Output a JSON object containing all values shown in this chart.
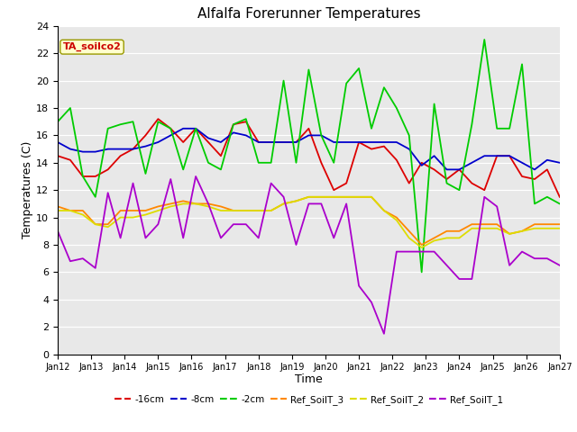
{
  "title": "Alfalfa Forerunner Temperatures",
  "xlabel": "Time",
  "ylabel": "Temperatures (C)",
  "ylim": [
    0,
    24
  ],
  "annotation_text": "TA_soilco2",
  "annotation_bg": "#ffffcc",
  "annotation_text_color": "#cc0000",
  "plot_bg": "#e8e8e8",
  "x_labels": [
    "Jan 12",
    "Jan 13",
    "Jan 14",
    "Jan 15",
    "Jan 16",
    "Jan 17",
    "Jan 18",
    "Jan 19",
    "Jan 20",
    "Jan 21",
    "Jan 22",
    "Jan 23",
    "Jan 24",
    "Jan 25",
    "Jan 26",
    "Jan 27"
  ],
  "series": {
    "-16cm": {
      "color": "#dd0000",
      "linewidth": 1.3,
      "values": [
        14.5,
        14.2,
        13.0,
        13.0,
        13.5,
        14.5,
        15.0,
        16.0,
        17.2,
        16.5,
        15.5,
        16.5,
        15.5,
        14.5,
        16.8,
        17.0,
        15.5,
        15.5,
        15.5,
        15.5,
        16.5,
        14.0,
        12.0,
        12.5,
        15.5,
        15.0,
        15.2,
        14.2,
        12.5,
        14.0,
        13.5,
        12.8,
        13.5,
        12.5,
        12.0,
        14.5,
        14.5,
        13.0,
        12.8,
        13.5,
        11.5
      ]
    },
    "-8cm": {
      "color": "#0000cc",
      "linewidth": 1.3,
      "values": [
        15.5,
        15.0,
        14.8,
        14.8,
        15.0,
        15.0,
        15.0,
        15.2,
        15.5,
        16.0,
        16.5,
        16.5,
        15.8,
        15.5,
        16.2,
        16.0,
        15.5,
        15.5,
        15.5,
        15.5,
        16.0,
        16.0,
        15.5,
        15.5,
        15.5,
        15.5,
        15.5,
        15.5,
        15.0,
        13.8,
        14.5,
        13.5,
        13.5,
        14.0,
        14.5,
        14.5,
        14.5,
        14.0,
        13.5,
        14.2,
        14.0
      ]
    },
    "-2cm": {
      "color": "#00cc00",
      "linewidth": 1.3,
      "values": [
        17.0,
        18.0,
        13.0,
        11.5,
        16.5,
        16.8,
        17.0,
        13.2,
        17.0,
        16.5,
        13.5,
        16.5,
        14.0,
        13.5,
        16.8,
        17.2,
        14.0,
        14.0,
        20.0,
        14.0,
        20.8,
        16.0,
        14.0,
        19.8,
        20.9,
        16.5,
        19.5,
        18.0,
        16.0,
        6.0,
        18.3,
        12.5,
        12.0,
        16.8,
        23.0,
        16.5,
        16.5,
        21.2,
        11.0,
        11.5,
        11.0
      ]
    },
    "Ref_SoilT_3": {
      "color": "#ff8800",
      "linewidth": 1.3,
      "values": [
        10.8,
        10.5,
        10.5,
        9.5,
        9.5,
        10.5,
        10.5,
        10.5,
        10.8,
        11.0,
        11.2,
        11.0,
        11.0,
        10.8,
        10.5,
        10.5,
        10.5,
        10.5,
        11.0,
        11.2,
        11.5,
        11.5,
        11.5,
        11.5,
        11.5,
        11.5,
        10.5,
        10.0,
        9.0,
        8.0,
        8.5,
        9.0,
        9.0,
        9.5,
        9.5,
        9.5,
        8.8,
        9.0,
        9.5,
        9.5,
        9.5
      ]
    },
    "Ref_SoilT_2": {
      "color": "#dddd00",
      "linewidth": 1.3,
      "values": [
        10.5,
        10.5,
        10.2,
        9.5,
        9.3,
        10.0,
        10.0,
        10.2,
        10.5,
        10.8,
        11.0,
        11.0,
        10.8,
        10.5,
        10.5,
        10.5,
        10.5,
        10.5,
        11.0,
        11.2,
        11.5,
        11.5,
        11.5,
        11.5,
        11.5,
        11.5,
        10.5,
        9.8,
        8.5,
        7.8,
        8.3,
        8.5,
        8.5,
        9.2,
        9.2,
        9.2,
        8.8,
        9.0,
        9.2,
        9.2,
        9.2
      ]
    },
    "Ref_SoilT_1": {
      "color": "#aa00cc",
      "linewidth": 1.3,
      "values": [
        9.0,
        6.8,
        7.0,
        6.3,
        11.8,
        8.5,
        12.5,
        8.5,
        9.5,
        12.8,
        8.5,
        13.0,
        11.0,
        8.5,
        9.5,
        9.5,
        8.5,
        12.5,
        11.5,
        8.0,
        11.0,
        11.0,
        8.5,
        11.0,
        5.0,
        3.8,
        1.5,
        7.5,
        7.5,
        7.5,
        7.5,
        6.5,
        5.5,
        5.5,
        11.5,
        10.8,
        6.5,
        7.5,
        7.0,
        7.0,
        6.5
      ]
    }
  }
}
